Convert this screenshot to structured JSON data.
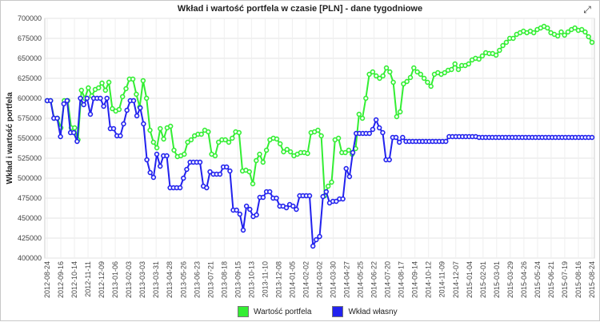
{
  "header": {
    "title": "Wkład i wartość portfela w czasie [PLN] - dane tygodniowe"
  },
  "chart_data": {
    "type": "line",
    "title": "Wkład i wartość portfela w czasie [PLN] - dane tygodniowe",
    "xlabel": "",
    "ylabel": "Wkład i wartość portfela",
    "ylim": [
      400000,
      700000
    ],
    "y_ticks": [
      400000,
      425000,
      450000,
      475000,
      500000,
      525000,
      550000,
      575000,
      600000,
      625000,
      650000,
      675000,
      700000
    ],
    "grid": true,
    "legend_position": "bottom-center",
    "x_labels": [
      "2012-08-24",
      "2012-09-16",
      "2012-10-14",
      "2012-11-11",
      "2012-12-09",
      "2013-01-06",
      "2013-02-03",
      "2013-03-03",
      "2013-03-31",
      "2013-04-28",
      "2013-05-26",
      "2013-06-23",
      "2013-07-21",
      "2013-08-18",
      "2013-09-15",
      "2013-10-13",
      "2013-11-10",
      "2013-12-08",
      "2014-01-05",
      "2014-02-02",
      "2014-03-02",
      "2014-03-30",
      "2014-04-27",
      "2014-05-25",
      "2014-06-22",
      "2014-07-20",
      "2014-08-17",
      "2014-09-14",
      "2014-10-12",
      "2014-11-09",
      "2014-12-07",
      "2015-01-04",
      "2015-02-01",
      "2015-03-01",
      "2015-03-29",
      "2015-04-26",
      "2015-05-24",
      "2015-06-21",
      "2015-07-19",
      "2015-08-16",
      "2015-08-24"
    ],
    "series": [
      {
        "name": "Wartość portfela",
        "color": "#33ee33",
        "values": [
          597000,
          597000,
          575000,
          575000,
          563000,
          597000,
          597000,
          563000,
          563000,
          548000,
          610000,
          600000,
          613000,
          603000,
          611000,
          613000,
          619000,
          610000,
          620000,
          587000,
          584000,
          586000,
          602000,
          612000,
          624000,
          624000,
          605000,
          589000,
          622000,
          600000,
          560000,
          545000,
          538000,
          562000,
          549000,
          563000,
          565000,
          535000,
          527000,
          528000,
          530000,
          545000,
          548000,
          553000,
          555000,
          555000,
          560000,
          558000,
          530000,
          528000,
          545000,
          548000,
          548000,
          545000,
          550000,
          558000,
          557000,
          509000,
          510000,
          508000,
          493000,
          522000,
          530000,
          520000,
          535000,
          548000,
          550000,
          549000,
          543000,
          533000,
          536000,
          533000,
          528000,
          530000,
          532000,
          532000,
          531000,
          557000,
          558000,
          560000,
          553000,
          478000,
          490000,
          495000,
          548000,
          550000,
          532000,
          532000,
          535000,
          530000,
          537000,
          580000,
          575000,
          600000,
          630000,
          633000,
          628000,
          625000,
          628000,
          638000,
          633000,
          620000,
          577000,
          583000,
          618000,
          621000,
          626000,
          638000,
          633000,
          630000,
          625000,
          620000,
          615000,
          630000,
          632000,
          630000,
          632000,
          635000,
          636000,
          643000,
          636000,
          641000,
          641000,
          643000,
          648000,
          650000,
          649000,
          653000,
          657000,
          656000,
          656000,
          654000,
          660000,
          666000,
          670000,
          675000,
          675000,
          680000,
          682000,
          684000,
          682000,
          684000,
          682000,
          686000,
          688000,
          690000,
          688000,
          682000,
          680000,
          678000,
          683000,
          679000,
          683000,
          686000,
          688000,
          685000,
          686000,
          683000,
          677000,
          670000
        ]
      },
      {
        "name": "Wkład własny",
        "color": "#2222ee",
        "values": [
          597000,
          597000,
          575000,
          575000,
          552000,
          593000,
          597000,
          557000,
          557000,
          546000,
          600000,
          592000,
          600000,
          580000,
          600000,
          600000,
          600000,
          590000,
          600000,
          562000,
          562000,
          553000,
          553000,
          568000,
          585000,
          597000,
          597000,
          578000,
          588000,
          568000,
          523000,
          507000,
          501000,
          530000,
          515000,
          528000,
          528000,
          488000,
          488000,
          488000,
          488000,
          500000,
          511000,
          520000,
          520000,
          520000,
          520000,
          490000,
          488000,
          508000,
          505000,
          505000,
          505000,
          514000,
          514000,
          509000,
          460000,
          460000,
          455000,
          435000,
          465000,
          461000,
          452000,
          454000,
          476000,
          476000,
          483000,
          483000,
          475000,
          475000,
          465000,
          465000,
          463000,
          467000,
          465000,
          461000,
          478000,
          478000,
          478000,
          478000,
          415000,
          423000,
          427000,
          477000,
          483000,
          469000,
          471000,
          471000,
          474000,
          474000,
          512000,
          502000,
          532000,
          556000,
          556000,
          556000,
          556000,
          556000,
          561000,
          573000,
          563000,
          557000,
          523000,
          523000,
          551000,
          551000,
          545000,
          551000,
          546000,
          546000,
          546000,
          546000,
          546000,
          546000,
          546000,
          546000,
          546000,
          546000,
          546000,
          546000,
          546000,
          552000,
          552000,
          552000,
          552000,
          552000,
          552000,
          552000,
          552000,
          552000,
          551000,
          551000,
          551000,
          551000,
          551000,
          551000,
          551000,
          551000,
          551000,
          551000,
          551000,
          551000,
          551000,
          551000,
          551000,
          551000,
          551000,
          551000,
          551000,
          551000,
          551000,
          551000,
          551000,
          551000,
          551000,
          551000,
          551000,
          551000,
          551000,
          551000,
          551000,
          551000,
          551000,
          551000,
          551000
        ]
      }
    ]
  },
  "legend": {
    "items": [
      "Wartość portfela",
      "Wkład własny"
    ]
  },
  "icons": {
    "expand": "expand-icon"
  }
}
